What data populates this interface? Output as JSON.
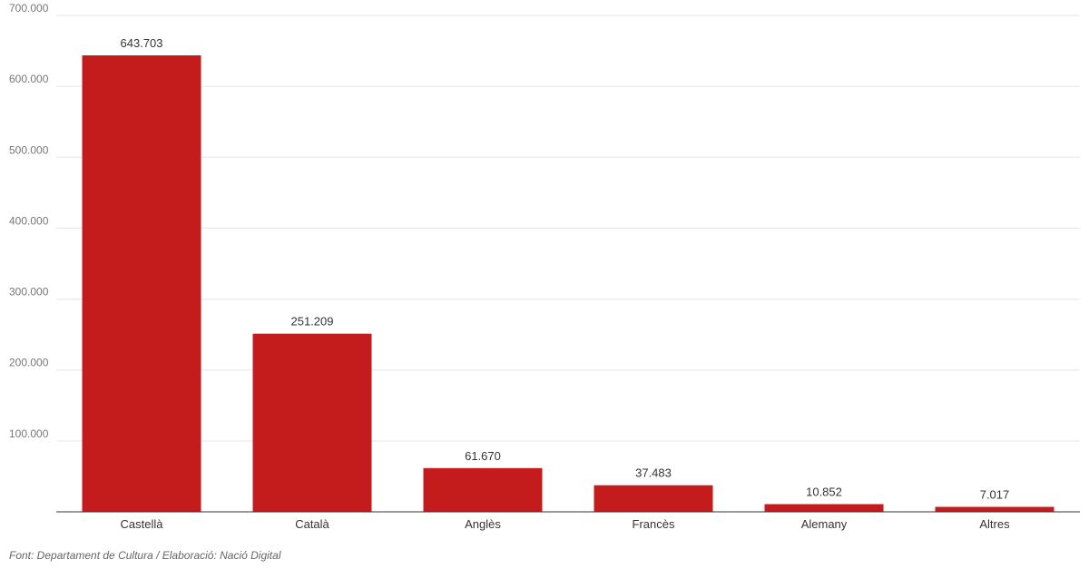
{
  "chart_data": {
    "type": "bar",
    "categories": [
      "Castellà",
      "Català",
      "Anglès",
      "Francès",
      "Alemany",
      "Altres"
    ],
    "values": [
      643703,
      251209,
      61670,
      37483,
      10852,
      7017
    ],
    "data_labels": [
      "643.703",
      "251.209",
      "61.670",
      "37.483",
      "10.852",
      "7.017"
    ],
    "ylim": [
      0,
      700000
    ],
    "yticks": [
      100000,
      200000,
      300000,
      400000,
      500000,
      600000,
      700000
    ],
    "ytick_labels": [
      "100.000",
      "200.000",
      "300.000",
      "400.000",
      "500.000",
      "600.000",
      "700.000"
    ],
    "grid": true,
    "bar_color": "#c41c1c"
  },
  "footer": {
    "source": "Font: Departament de Cultura / Elaboració: Nació Digital"
  }
}
